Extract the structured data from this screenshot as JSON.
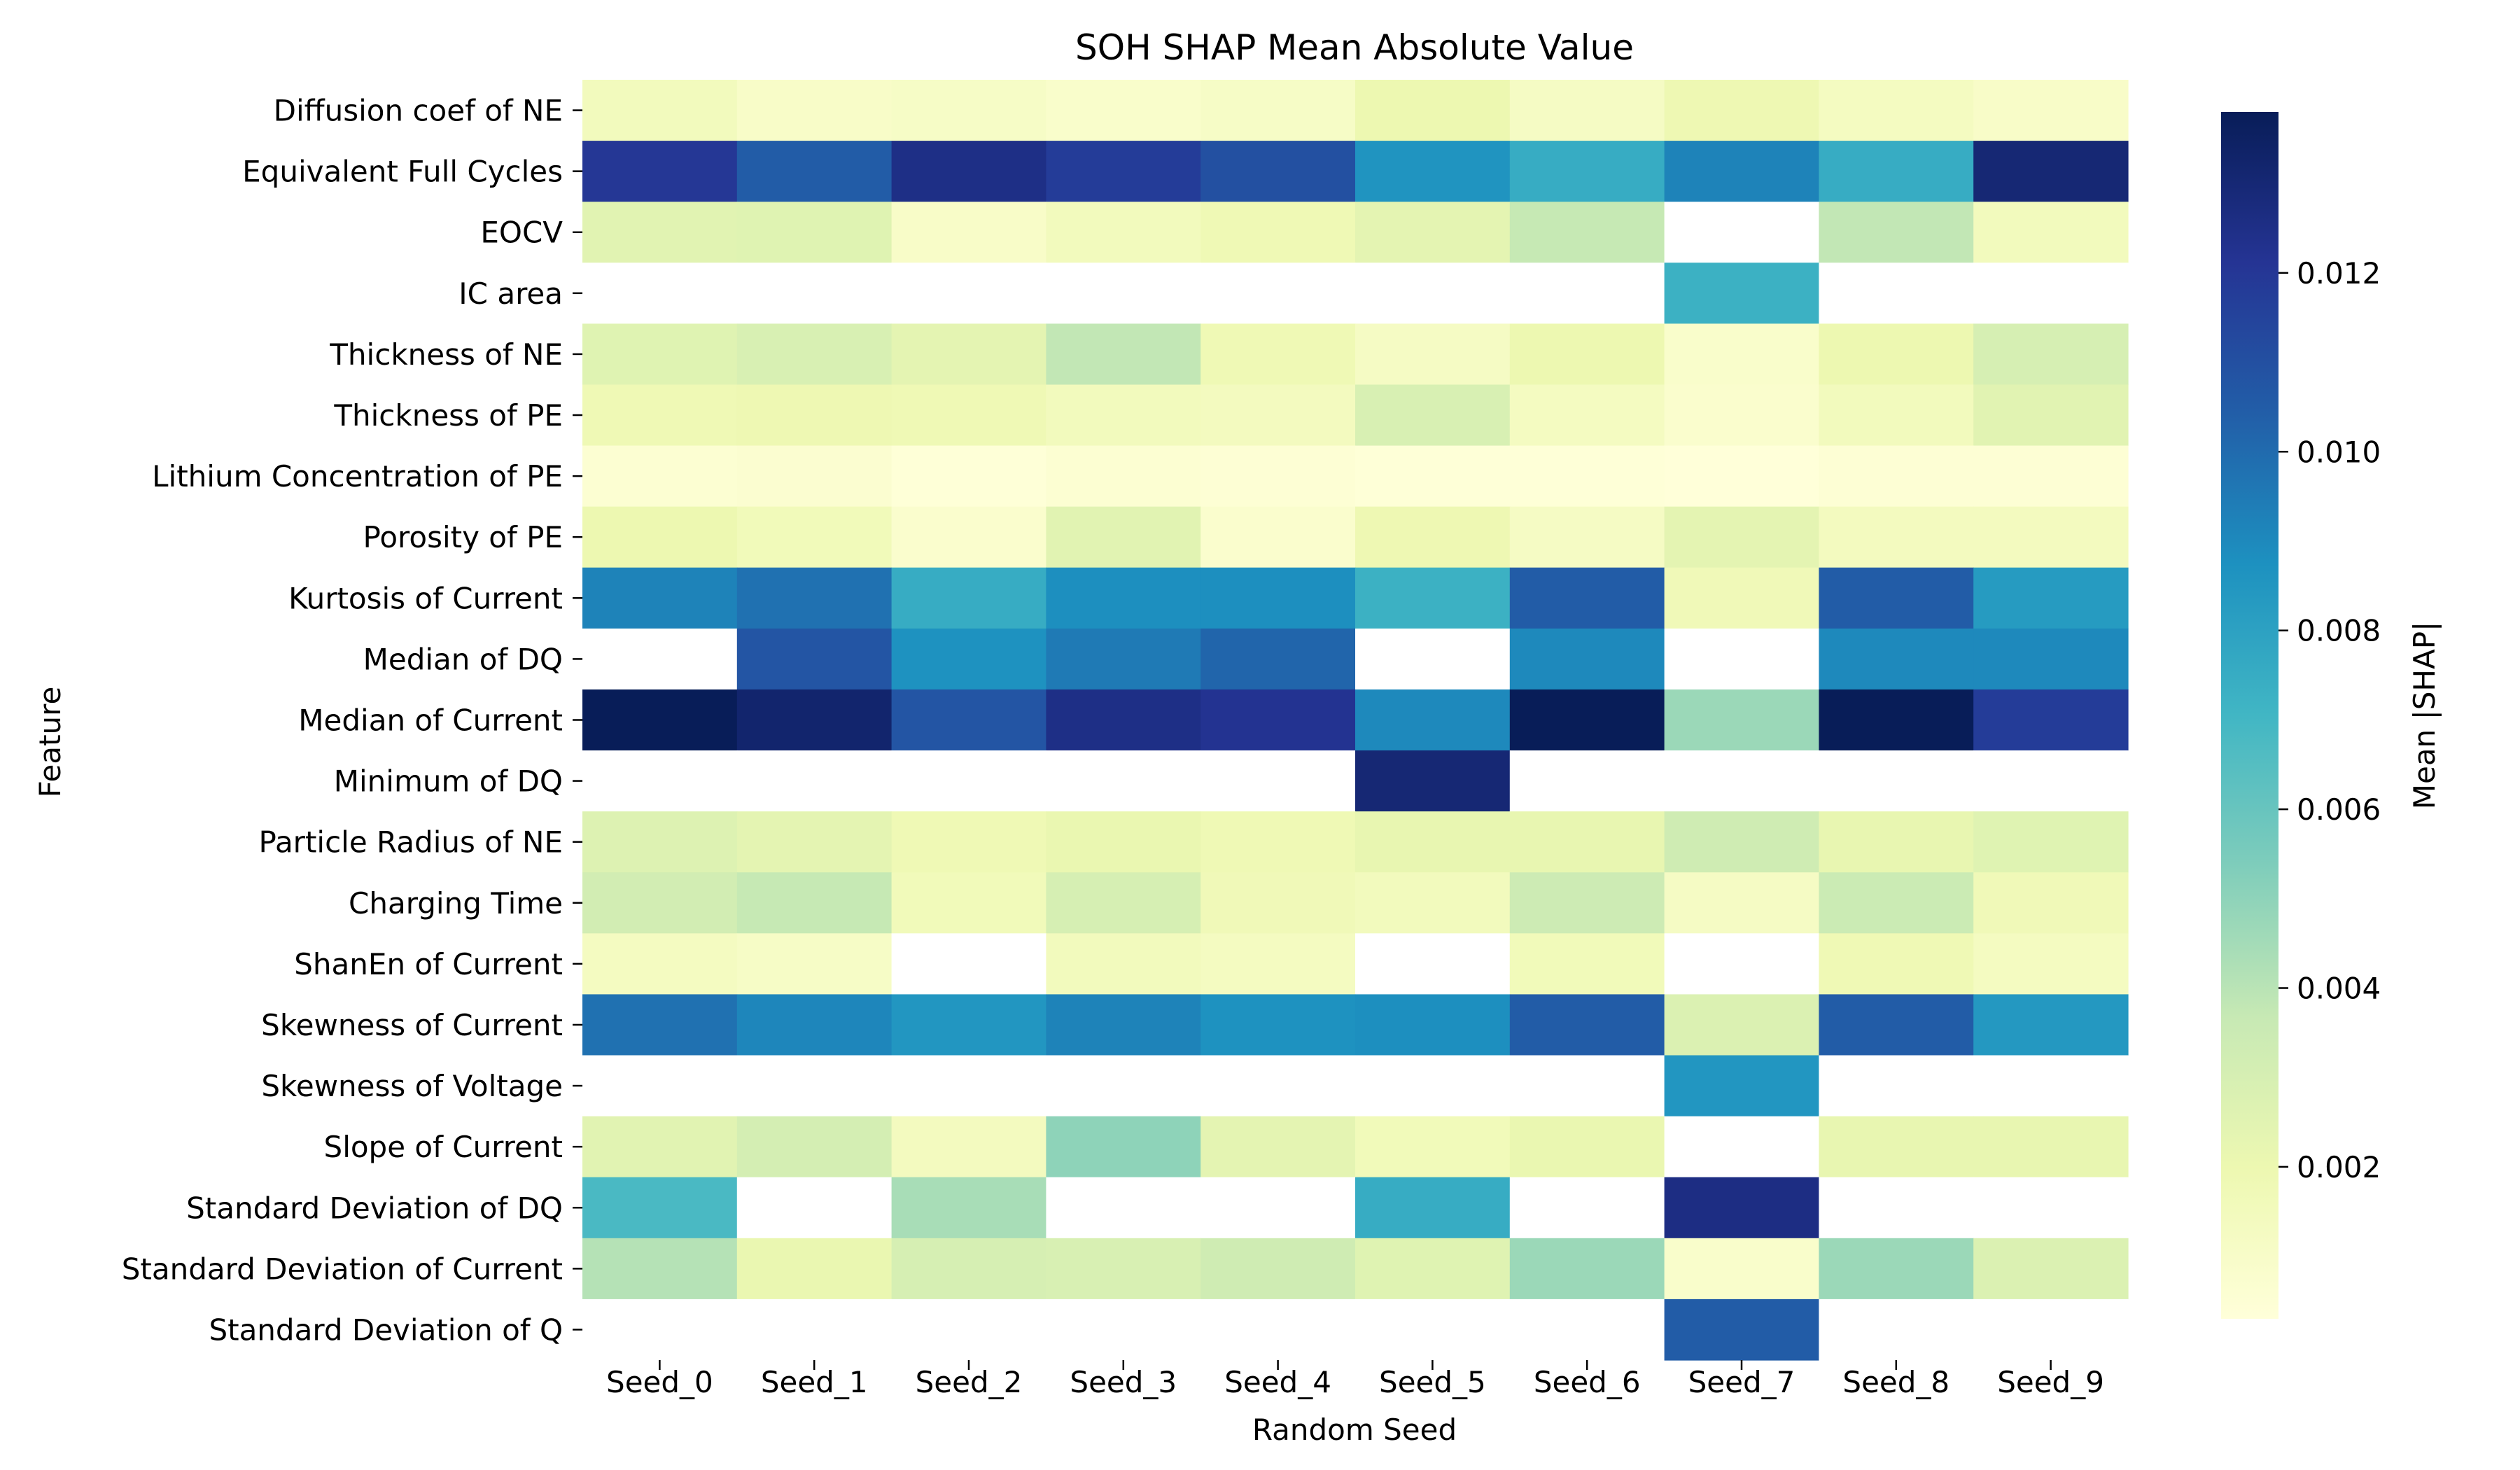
{
  "chart_data": {
    "type": "heatmap",
    "title": "SOH SHAP Mean Absolute Value",
    "xlabel": "Random Seed",
    "ylabel": "Feature",
    "x_categories": [
      "Seed_0",
      "Seed_1",
      "Seed_2",
      "Seed_3",
      "Seed_4",
      "Seed_5",
      "Seed_6",
      "Seed_7",
      "Seed_8",
      "Seed_9"
    ],
    "y_categories": [
      "Diffusion coef of NE",
      "Equivalent Full Cycles",
      "EOCV",
      "IC area",
      "Thickness of NE",
      "Thickness of PE",
      "Lithium Concentration of PE",
      "Porosity of PE",
      "Kurtosis of Current",
      "Median of DQ",
      "Median of Current",
      "Minimum of DQ",
      "Particle Radius of NE",
      "Charging Time",
      "ShanEn of Current",
      "Skewness of Current",
      "Skewness of Voltage",
      "Slope of Current",
      "Standard Deviation of DQ",
      "Standard Deviation of Current",
      "Standard Deviation of Q"
    ],
    "values": [
      [
        0.0015,
        0.001,
        0.0011,
        0.0009,
        0.0011,
        0.002,
        0.0012,
        0.0019,
        0.0013,
        0.001
      ],
      [
        0.012,
        0.0105,
        0.0125,
        0.0118,
        0.011,
        0.0086,
        0.0075,
        0.0092,
        0.0075,
        0.013
      ],
      [
        0.0025,
        0.0026,
        0.001,
        0.0015,
        0.0018,
        0.0024,
        0.0037,
        null,
        0.0038,
        0.0015
      ],
      [
        null,
        null,
        null,
        null,
        null,
        null,
        null,
        0.0073,
        null,
        null
      ],
      [
        0.0026,
        0.0029,
        0.0024,
        0.0038,
        0.0018,
        0.0012,
        0.002,
        0.0009,
        0.002,
        0.003
      ],
      [
        0.0018,
        0.0019,
        0.0018,
        0.0015,
        0.0014,
        0.0029,
        0.0013,
        0.0008,
        0.0015,
        0.0025
      ],
      [
        0.0006,
        0.0007,
        0.0004,
        0.0006,
        0.0005,
        0.0004,
        0.0004,
        0.0003,
        0.0005,
        0.0005
      ],
      [
        0.002,
        0.0016,
        0.0008,
        0.0025,
        0.0008,
        0.0019,
        0.0012,
        0.0024,
        0.0014,
        0.0014
      ],
      [
        0.0092,
        0.0098,
        0.0075,
        0.0088,
        0.0088,
        0.0073,
        0.0105,
        0.0017,
        0.0105,
        0.0083
      ],
      [
        null,
        0.0108,
        0.0087,
        0.0095,
        0.0102,
        null,
        0.009,
        null,
        0.009,
        0.009
      ],
      [
        0.0138,
        0.0132,
        0.0108,
        0.0125,
        0.0122,
        0.009,
        0.0138,
        0.0047,
        0.0138,
        0.0118
      ],
      [
        null,
        null,
        null,
        null,
        null,
        0.013,
        null,
        null,
        null,
        null
      ],
      [
        0.0027,
        0.0024,
        0.0018,
        0.0021,
        0.0018,
        0.0022,
        0.0022,
        0.0033,
        0.0022,
        0.0026
      ],
      [
        0.0032,
        0.0037,
        0.0016,
        0.003,
        0.0017,
        0.0015,
        0.0034,
        0.0012,
        0.0035,
        0.0017
      ],
      [
        0.0013,
        0.0011,
        null,
        0.0015,
        0.0013,
        null,
        0.0016,
        null,
        0.0018,
        0.0013
      ],
      [
        0.0098,
        0.0091,
        0.0085,
        0.0092,
        0.0087,
        0.0088,
        0.0105,
        0.0028,
        0.0105,
        0.0084
      ],
      [
        null,
        null,
        null,
        null,
        null,
        null,
        null,
        0.0085,
        null,
        null
      ],
      [
        0.0025,
        0.0031,
        0.0014,
        0.005,
        0.0024,
        0.0016,
        0.0021,
        null,
        0.0022,
        0.0022
      ],
      [
        0.0068,
        null,
        0.0044,
        null,
        null,
        0.0075,
        null,
        0.0126,
        null,
        null
      ],
      [
        0.0041,
        0.0021,
        0.003,
        0.0029,
        0.0033,
        0.0026,
        0.0047,
        0.0009,
        0.0047,
        0.0028
      ],
      [
        null,
        null,
        null,
        null,
        null,
        null,
        null,
        0.0105,
        null,
        null
      ]
    ],
    "colorbar": {
      "label": "Mean |SHAP|",
      "colormap": "YlGnBu",
      "vmin": 0.0003,
      "vmax": 0.0138,
      "ticks": [
        "0.002",
        "0.004",
        "0.006",
        "0.008",
        "0.010",
        "0.012"
      ],
      "tick_values": [
        0.002,
        0.004,
        0.006,
        0.008,
        0.01,
        0.012
      ]
    },
    "missing_color": "#ffffff",
    "grid": false
  }
}
